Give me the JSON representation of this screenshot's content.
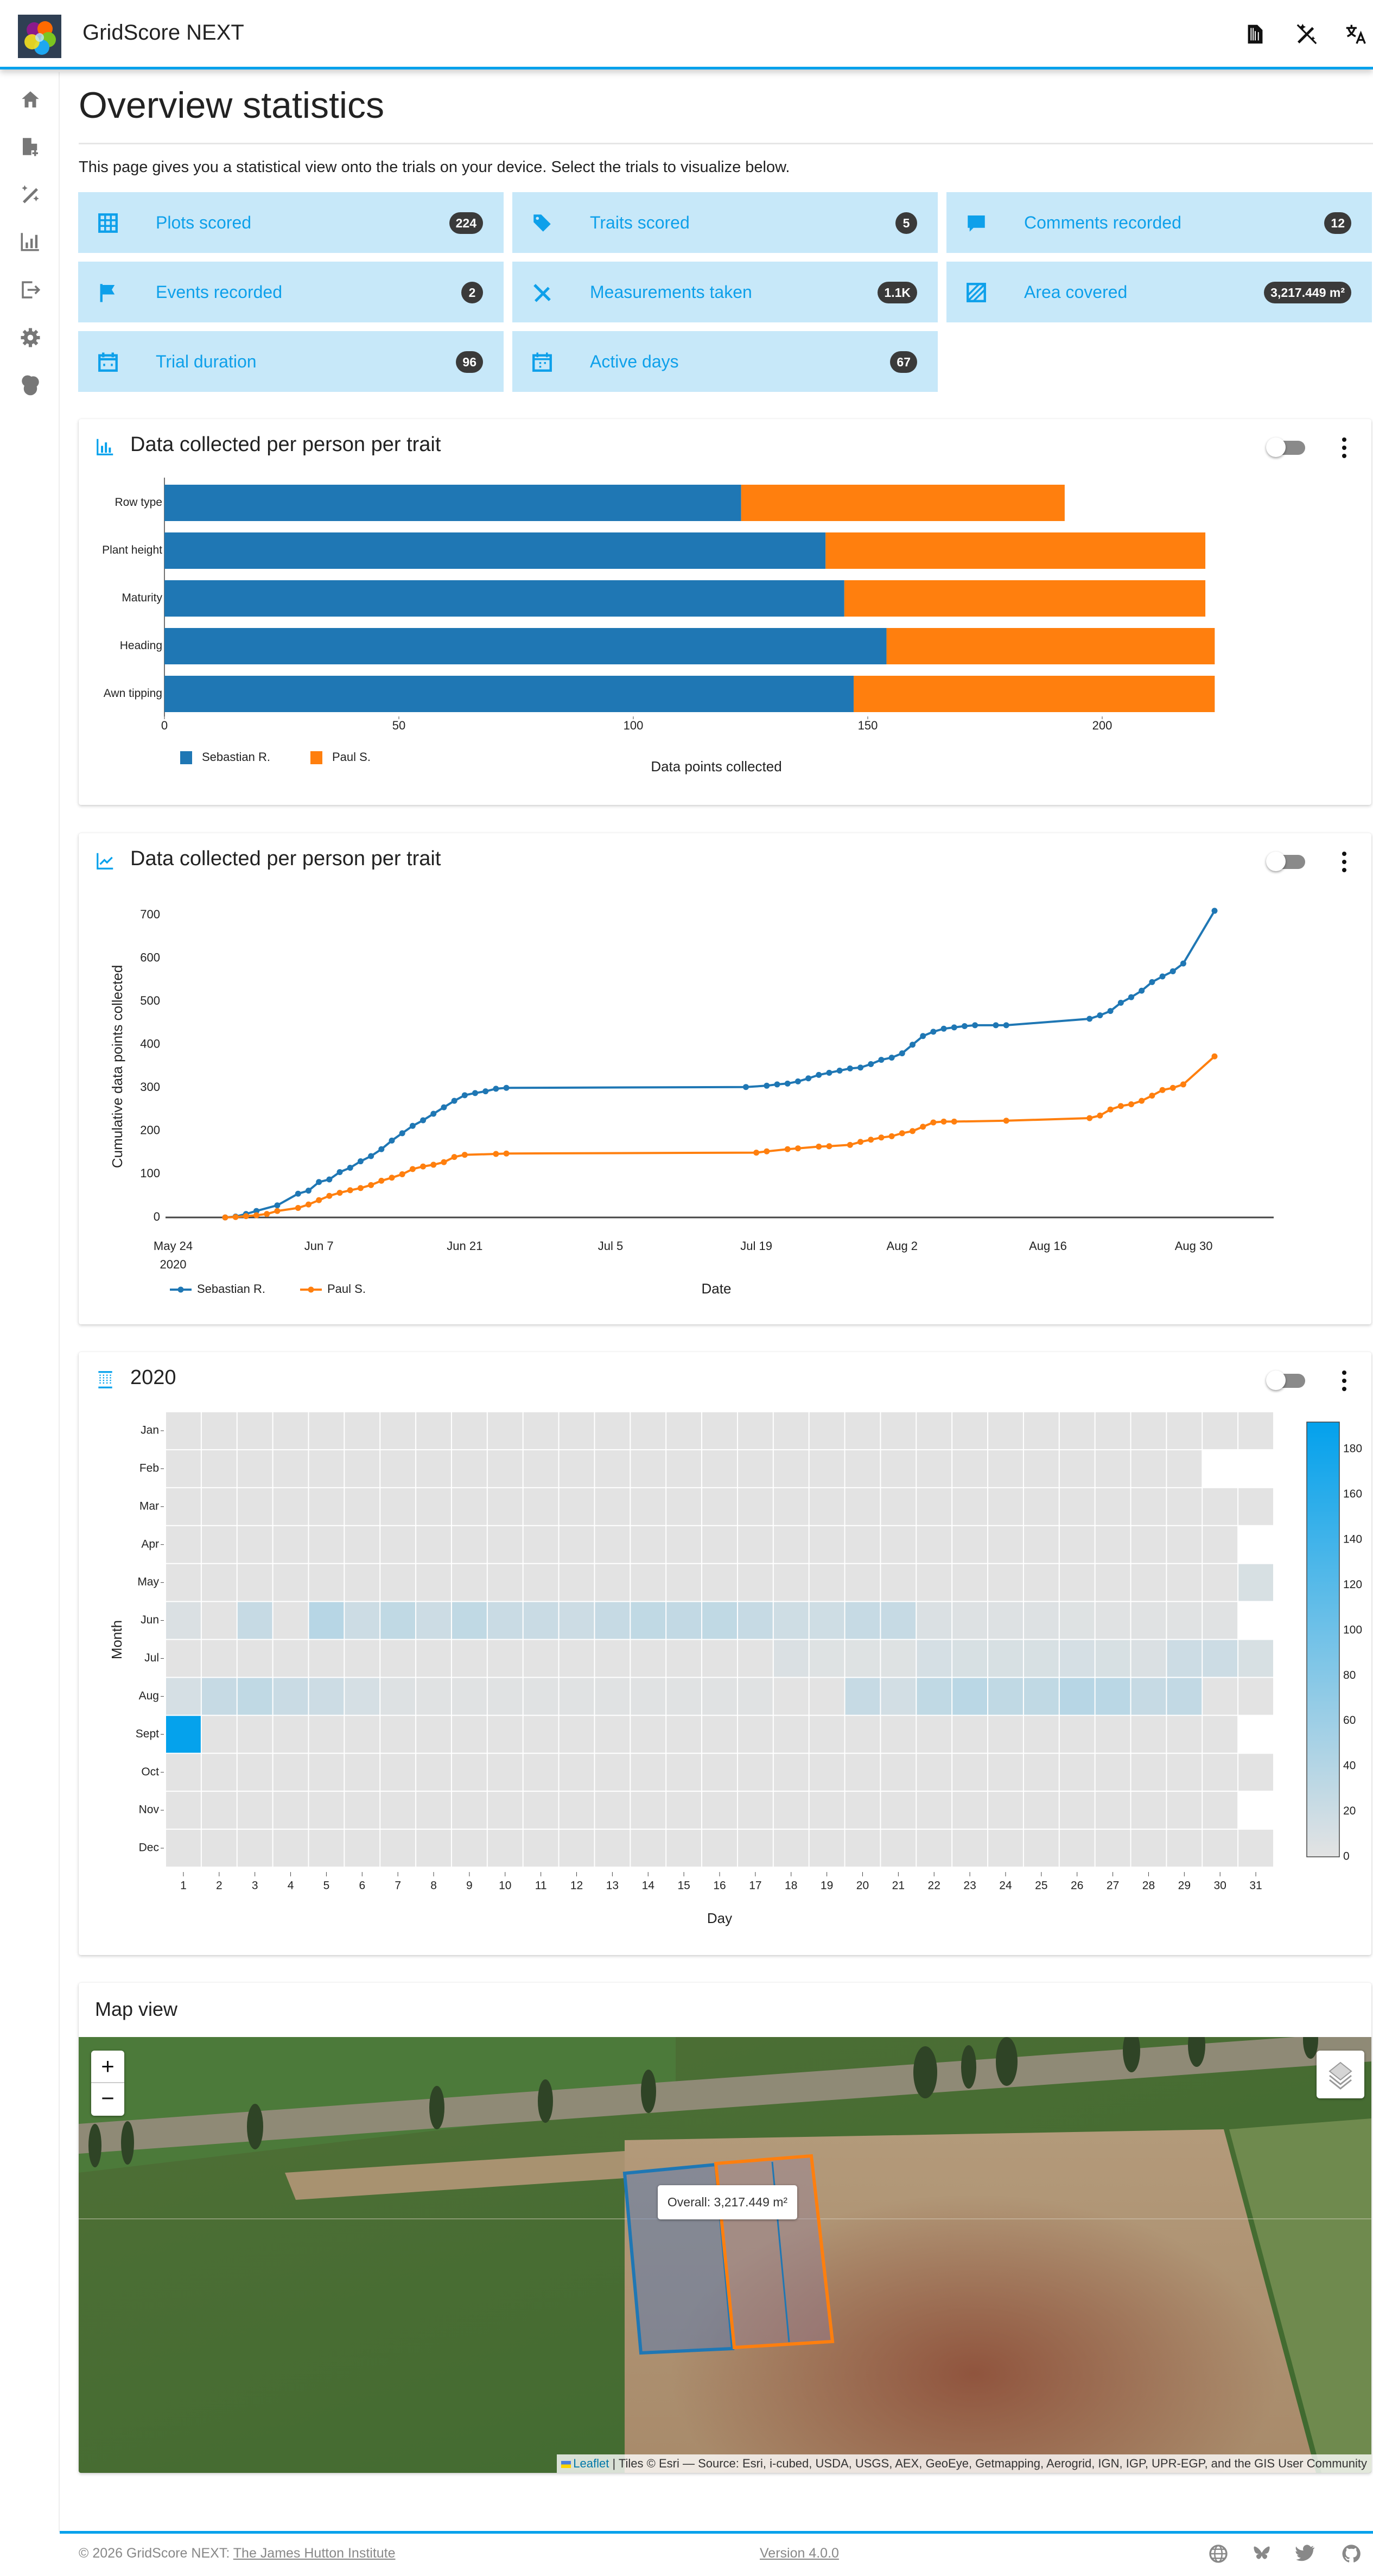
{
  "header": {
    "app_title": "GridScore NEXT",
    "icons": [
      "barcode-scanner-icon",
      "magic-wand-off-icon",
      "translate-icon"
    ]
  },
  "sidebar": {
    "items": [
      {
        "icon": "home-icon"
      },
      {
        "icon": "trial-add-icon"
      },
      {
        "icon": "data-entry-icon"
      },
      {
        "icon": "statistics-icon"
      },
      {
        "icon": "export-icon"
      },
      {
        "icon": "settings-icon"
      },
      {
        "icon": "about-icon"
      }
    ]
  },
  "page": {
    "title": "Overview statistics",
    "description": "This page gives you a statistical view onto the trials on your device. Select the trials to visualize below."
  },
  "stats": [
    {
      "label": "Plots scored",
      "value": "224",
      "icon": "grid-icon"
    },
    {
      "label": "Traits scored",
      "value": "5",
      "icon": "tags-icon"
    },
    {
      "label": "Comments recorded",
      "value": "12",
      "icon": "comment-icon"
    },
    {
      "label": "Events recorded",
      "value": "2",
      "icon": "flag-icon"
    },
    {
      "label": "Measurements taken",
      "value": "1.1K",
      "icon": "ruler-pencil-icon"
    },
    {
      "label": "Area covered",
      "value": "3,217.449 m²",
      "icon": "area-icon"
    },
    {
      "label": "Trial duration",
      "value": "96",
      "icon": "calendar-range-icon"
    },
    {
      "label": "Active days",
      "value": "67",
      "icon": "calendar-icon"
    }
  ],
  "colors": {
    "accent": "#03a1ec",
    "tile_bg": "#c7e8f9",
    "series_1": "#1f77b4",
    "series_2": "#ff7f0e"
  },
  "cards": {
    "bar_title": "Data collected per person per trait",
    "line_title": "Data collected per person per trait",
    "heatmap_title": "2020",
    "map_title": "Map view"
  },
  "chart_data": [
    {
      "type": "bar",
      "orientation": "horizontal",
      "stacked": true,
      "categories": [
        "Row type",
        "Plant height",
        "Maturity",
        "Heading",
        "Awn tipping"
      ],
      "series": [
        {
          "name": "Sebastian R.",
          "color": "#1f77b4",
          "values": [
            123,
            141,
            145,
            154,
            147
          ]
        },
        {
          "name": "Paul S.",
          "color": "#ff7f0e",
          "values": [
            69,
            81,
            77,
            70,
            77
          ]
        }
      ],
      "xlabel": "Data points collected",
      "xticks": [
        "0",
        "50",
        "100",
        "150",
        "200"
      ],
      "xlim": [
        0,
        224
      ],
      "legend": "bottom-left"
    },
    {
      "type": "line",
      "xlabel": "Date",
      "ylabel": "Cumulative data points collected",
      "xticks": [
        "May 24",
        "Jun 7",
        "Jun 21",
        "Jul 5",
        "Jul 19",
        "Aug 2",
        "Aug 16",
        "Aug 30"
      ],
      "xtick_year": "2020",
      "yticks": [
        "0",
        "100",
        "200",
        "300",
        "400",
        "500",
        "600",
        "700"
      ],
      "xlim": [
        "2020-05-23",
        "2020-09-06"
      ],
      "ylim": [
        0,
        740
      ],
      "legend": "bottom-left",
      "series": [
        {
          "name": "Sebastian R.",
          "color": "#1f77b4",
          "x": [
            "2020-05-29",
            "2020-05-30",
            "2020-05-31",
            "2020-06-01",
            "2020-06-03",
            "2020-06-05",
            "2020-06-06",
            "2020-06-07",
            "2020-06-08",
            "2020-06-09",
            "2020-06-10",
            "2020-06-11",
            "2020-06-12",
            "2020-06-13",
            "2020-06-14",
            "2020-06-15",
            "2020-06-16",
            "2020-06-17",
            "2020-06-18",
            "2020-06-19",
            "2020-06-20",
            "2020-06-21",
            "2020-06-22",
            "2020-06-23",
            "2020-06-24",
            "2020-06-25",
            "2020-07-18",
            "2020-07-20",
            "2020-07-21",
            "2020-07-22",
            "2020-07-23",
            "2020-07-24",
            "2020-07-25",
            "2020-07-26",
            "2020-07-27",
            "2020-07-28",
            "2020-07-29",
            "2020-07-30",
            "2020-07-31",
            "2020-08-01",
            "2020-08-02",
            "2020-08-03",
            "2020-08-04",
            "2020-08-05",
            "2020-08-06",
            "2020-08-07",
            "2020-08-08",
            "2020-08-09",
            "2020-08-11",
            "2020-08-12",
            "2020-08-20",
            "2020-08-21",
            "2020-08-22",
            "2020-08-23",
            "2020-08-24",
            "2020-08-25",
            "2020-08-26",
            "2020-08-27",
            "2020-08-28",
            "2020-08-29",
            "2020-09-01"
          ],
          "y": [
            0,
            2,
            8,
            15,
            28,
            55,
            62,
            82,
            88,
            105,
            115,
            130,
            142,
            158,
            178,
            195,
            212,
            225,
            240,
            255,
            270,
            283,
            288,
            292,
            298,
            300,
            302,
            305,
            308,
            310,
            315,
            322,
            330,
            335,
            340,
            345,
            347,
            355,
            365,
            370,
            380,
            400,
            420,
            430,
            437,
            440,
            443,
            445,
            445,
            445,
            460,
            468,
            478,
            497,
            510,
            525,
            545,
            558,
            570,
            588,
            710
          ]
        },
        {
          "name": "Paul S.",
          "color": "#ff7f0e",
          "x": [
            "2020-05-29",
            "2020-05-30",
            "2020-05-31",
            "2020-06-01",
            "2020-06-02",
            "2020-06-03",
            "2020-06-05",
            "2020-06-06",
            "2020-06-07",
            "2020-06-08",
            "2020-06-09",
            "2020-06-10",
            "2020-06-11",
            "2020-06-12",
            "2020-06-13",
            "2020-06-14",
            "2020-06-15",
            "2020-06-16",
            "2020-06-17",
            "2020-06-18",
            "2020-06-19",
            "2020-06-20",
            "2020-06-21",
            "2020-06-24",
            "2020-06-25",
            "2020-07-19",
            "2020-07-20",
            "2020-07-22",
            "2020-07-23",
            "2020-07-25",
            "2020-07-26",
            "2020-07-28",
            "2020-07-29",
            "2020-07-30",
            "2020-07-31",
            "2020-08-01",
            "2020-08-02",
            "2020-08-03",
            "2020-08-04",
            "2020-08-05",
            "2020-08-06",
            "2020-08-07",
            "2020-08-12",
            "2020-08-20",
            "2020-08-21",
            "2020-08-22",
            "2020-08-23",
            "2020-08-24",
            "2020-08-25",
            "2020-08-26",
            "2020-08-27",
            "2020-08-28",
            "2020-08-29",
            "2020-09-01"
          ],
          "y": [
            0,
            1,
            3,
            5,
            8,
            15,
            22,
            30,
            40,
            50,
            57,
            63,
            68,
            75,
            85,
            92,
            100,
            112,
            118,
            122,
            128,
            140,
            145,
            147,
            148,
            150,
            153,
            158,
            160,
            164,
            165,
            168,
            175,
            180,
            185,
            188,
            195,
            200,
            210,
            220,
            222,
            222,
            224,
            230,
            236,
            250,
            258,
            262,
            270,
            282,
            295,
            300,
            308,
            373
          ]
        }
      ]
    },
    {
      "type": "heatmap",
      "title": "2020",
      "xlabel": "Day",
      "ylabel": "Month",
      "months": [
        "Jan",
        "Feb",
        "Mar",
        "Apr",
        "May",
        "Jun",
        "Jul",
        "Aug",
        "Sept",
        "Oct",
        "Nov",
        "Dec"
      ],
      "days": [
        "1",
        "2",
        "3",
        "4",
        "5",
        "6",
        "7",
        "8",
        "9",
        "10",
        "11",
        "12",
        "13",
        "14",
        "15",
        "16",
        "17",
        "18",
        "19",
        "20",
        "21",
        "22",
        "23",
        "24",
        "25",
        "26",
        "27",
        "28",
        "29",
        "30",
        "31"
      ],
      "colorbar_ticks": [
        "0",
        "20",
        "40",
        "60",
        "80",
        "100",
        "120",
        "140",
        "160",
        "180"
      ],
      "zlim": [
        0,
        192
      ],
      "colorscale": [
        "#e3e3e3",
        "#03a1ec"
      ],
      "values": [
        [
          0,
          0,
          0,
          0,
          0,
          0,
          0,
          0,
          0,
          0,
          0,
          0,
          0,
          0,
          0,
          0,
          0,
          0,
          0,
          0,
          0,
          0,
          0,
          0,
          0,
          0,
          0,
          0,
          0,
          0,
          0
        ],
        [
          0,
          0,
          0,
          0,
          0,
          0,
          0,
          0,
          0,
          0,
          0,
          0,
          0,
          0,
          0,
          0,
          0,
          0,
          0,
          0,
          0,
          0,
          0,
          0,
          0,
          0,
          0,
          0,
          0,
          null,
          null
        ],
        [
          0,
          0,
          0,
          0,
          0,
          0,
          0,
          0,
          0,
          0,
          0,
          0,
          0,
          0,
          0,
          0,
          0,
          0,
          0,
          0,
          0,
          0,
          0,
          0,
          0,
          0,
          0,
          0,
          0,
          0,
          0
        ],
        [
          0,
          0,
          0,
          0,
          0,
          0,
          0,
          0,
          0,
          0,
          0,
          0,
          0,
          0,
          0,
          0,
          0,
          0,
          0,
          0,
          0,
          0,
          0,
          0,
          0,
          0,
          0,
          0,
          0,
          0,
          null
        ],
        [
          0,
          0,
          0,
          0,
          0,
          0,
          0,
          0,
          0,
          0,
          0,
          0,
          0,
          0,
          0,
          0,
          0,
          0,
          0,
          0,
          0,
          0,
          0,
          0,
          0,
          0,
          0,
          0,
          0,
          0,
          10
        ],
        [
          8,
          0,
          25,
          0,
          38,
          20,
          30,
          20,
          30,
          22,
          22,
          20,
          25,
          30,
          28,
          30,
          25,
          18,
          18,
          25,
          25,
          8,
          5,
          5,
          5,
          4,
          3,
          3,
          3,
          3,
          null
        ],
        [
          0,
          0,
          0,
          0,
          0,
          0,
          0,
          0,
          0,
          0,
          0,
          0,
          0,
          0,
          0,
          0,
          0,
          8,
          4,
          4,
          4,
          12,
          10,
          10,
          10,
          12,
          10,
          8,
          20,
          20,
          10
        ],
        [
          12,
          25,
          30,
          22,
          20,
          12,
          5,
          3,
          3,
          3,
          3,
          3,
          3,
          3,
          3,
          3,
          3,
          0,
          0,
          25,
          15,
          30,
          35,
          30,
          30,
          38,
          35,
          25,
          28,
          0,
          0
        ],
        [
          190,
          0,
          0,
          0,
          0,
          0,
          0,
          0,
          0,
          0,
          0,
          0,
          0,
          0,
          0,
          0,
          0,
          0,
          0,
          0,
          0,
          0,
          0,
          0,
          0,
          0,
          0,
          0,
          0,
          0,
          null
        ],
        [
          0,
          0,
          0,
          0,
          0,
          0,
          0,
          0,
          0,
          0,
          0,
          0,
          0,
          0,
          0,
          0,
          0,
          0,
          0,
          0,
          0,
          0,
          0,
          0,
          0,
          0,
          0,
          0,
          0,
          0,
          0
        ],
        [
          0,
          0,
          0,
          0,
          0,
          0,
          0,
          0,
          0,
          0,
          0,
          0,
          0,
          0,
          0,
          0,
          0,
          0,
          0,
          0,
          0,
          0,
          0,
          0,
          0,
          0,
          0,
          0,
          0,
          0,
          null
        ],
        [
          0,
          0,
          0,
          0,
          0,
          0,
          0,
          0,
          0,
          0,
          0,
          0,
          0,
          0,
          0,
          0,
          0,
          0,
          0,
          0,
          0,
          0,
          0,
          0,
          0,
          0,
          0,
          0,
          0,
          0,
          0
        ]
      ]
    }
  ],
  "map": {
    "zoom_in": "+",
    "zoom_out": "−",
    "tooltip": "Overall: 3,217.449 m²",
    "attribution_link": "Leaflet",
    "attribution_text": " | Tiles © Esri — Source: Esri, i-cubed, USDA, USGS, AEX, GeoEye, Getmapping, Aerogrid, IGN, IGP, UPR-EGP, and the GIS User Community",
    "plot_colors": [
      "#1f77b4",
      "#ff7f0e"
    ]
  },
  "footer": {
    "copyright": "© 2026 GridScore NEXT: ",
    "institute": "The James Hutton Institute",
    "version": "Version 4.0.0",
    "icons": [
      "globe-icon",
      "bluesky-icon",
      "twitter-icon",
      "github-icon"
    ]
  }
}
